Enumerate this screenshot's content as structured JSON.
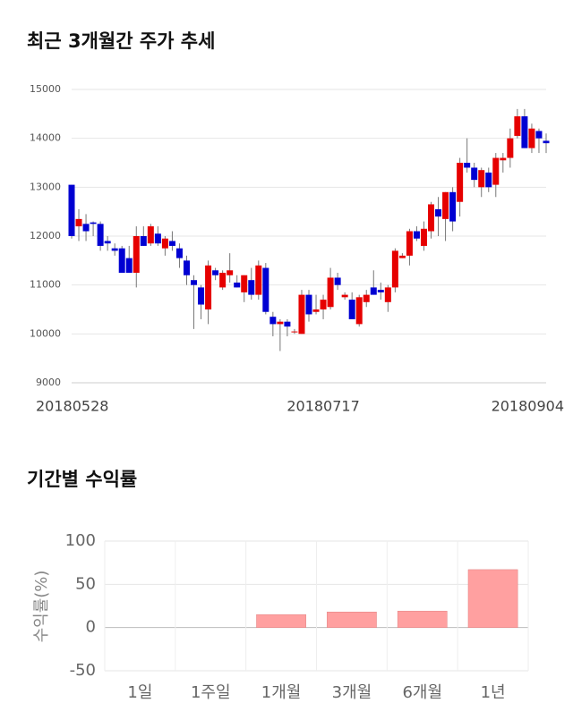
{
  "chart_data": [
    {
      "type": "candlestick",
      "title": "최근 3개월간 주가 추세",
      "categories": [
        "20180528",
        null,
        null,
        null,
        null,
        null,
        null,
        null,
        null,
        null,
        null,
        null,
        null,
        null,
        null,
        null,
        null,
        null,
        null,
        null,
        null,
        null,
        null,
        null,
        null,
        null,
        null,
        null,
        null,
        null,
        null,
        null,
        null,
        null,
        null,
        "20180717",
        null,
        null,
        null,
        null,
        null,
        null,
        null,
        null,
        null,
        null,
        null,
        null,
        null,
        null,
        null,
        null,
        null,
        null,
        null,
        null,
        null,
        null,
        null,
        null,
        null,
        null,
        null,
        null,
        null,
        null,
        "20180904"
      ],
      "open": [
        13050,
        12200,
        12250,
        12280,
        12250,
        11900,
        11750,
        11750,
        11550,
        11250,
        12000,
        11850,
        12050,
        11750,
        11900,
        11750,
        11500,
        11100,
        10950,
        10500,
        11300,
        10950,
        11200,
        11050,
        10850,
        11100,
        10800,
        11350,
        10350,
        10200,
        10250,
        10050,
        10000,
        10800,
        10450,
        10500,
        10550,
        11150,
        10750,
        10700,
        10200,
        10650,
        10950,
        10900,
        10650,
        10950,
        11550,
        11600,
        12100,
        11800,
        12100,
        12550,
        12350,
        12900,
        12700,
        13500,
        13400,
        13000,
        13300,
        13050,
        13550,
        13600,
        14050,
        14450,
        13800,
        14150,
        13950
      ],
      "high": [
        13050,
        12550,
        12450,
        12300,
        12300,
        12000,
        11850,
        11800,
        11800,
        12200,
        12200,
        12250,
        12200,
        12000,
        12100,
        11850,
        11600,
        11200,
        11000,
        11500,
        11350,
        11300,
        11650,
        11200,
        11200,
        11350,
        11500,
        11450,
        10450,
        10300,
        10300,
        10100,
        10900,
        10900,
        10800,
        10800,
        11350,
        11250,
        10850,
        10850,
        10800,
        10900,
        11300,
        11050,
        11000,
        11750,
        11650,
        12150,
        12200,
        12300,
        12700,
        12800,
        12900,
        13000,
        13600,
        14000,
        13500,
        13400,
        13400,
        13700,
        13700,
        14200,
        14600,
        14600,
        14300,
        14200,
        14100
      ],
      "low": [
        11950,
        11900,
        11900,
        12000,
        11700,
        11700,
        11600,
        11250,
        11250,
        10950,
        11800,
        11800,
        11800,
        11600,
        11700,
        11350,
        11000,
        10100,
        10300,
        10200,
        11100,
        10900,
        11050,
        10950,
        10650,
        10700,
        10700,
        10400,
        9950,
        9650,
        9950,
        10000,
        10000,
        10250,
        10400,
        10300,
        10500,
        10900,
        10700,
        10300,
        10150,
        10550,
        10800,
        10700,
        10450,
        10850,
        11550,
        11400,
        11900,
        11700,
        11950,
        12000,
        11900,
        12100,
        12400,
        13300,
        13000,
        12800,
        12900,
        12800,
        13300,
        13400,
        14000,
        13800,
        13700,
        13700,
        13700
      ],
      "close": [
        12000,
        12350,
        12100,
        12250,
        11800,
        11850,
        11700,
        11250,
        11250,
        12000,
        11800,
        12200,
        11850,
        11950,
        11800,
        11550,
        11200,
        11000,
        10600,
        11400,
        11200,
        11250,
        11300,
        10950,
        11200,
        10800,
        11400,
        10450,
        10200,
        10250,
        10150,
        10050,
        10800,
        10400,
        10500,
        10700,
        11150,
        11000,
        10800,
        10300,
        10750,
        10800,
        10800,
        10850,
        10950,
        11700,
        11600,
        12100,
        11950,
        12150,
        12650,
        12400,
        12900,
        12300,
        13500,
        13400,
        13150,
        13350,
        13000,
        13600,
        13600,
        14000,
        14450,
        13800,
        14200,
        14000,
        13900
      ],
      "up_color": "#e60000",
      "down_color": "#0000d2",
      "ylim": [
        9000,
        15000
      ],
      "yticks": [
        9000,
        10000,
        11000,
        12000,
        13000,
        14000,
        15000
      ],
      "grid": true
    },
    {
      "type": "bar",
      "title": "기간별 수익률",
      "ylabel": "수익률(%)",
      "categories": [
        "1일",
        "1주일",
        "1개월",
        "3개월",
        "6개월",
        "1년"
      ],
      "values": [
        0,
        0,
        15,
        18,
        19,
        67
      ],
      "color": "#ffa0a0",
      "ylim": [
        -50,
        100
      ],
      "yticks": [
        -50,
        0,
        50,
        100
      ],
      "grid": true
    }
  ]
}
